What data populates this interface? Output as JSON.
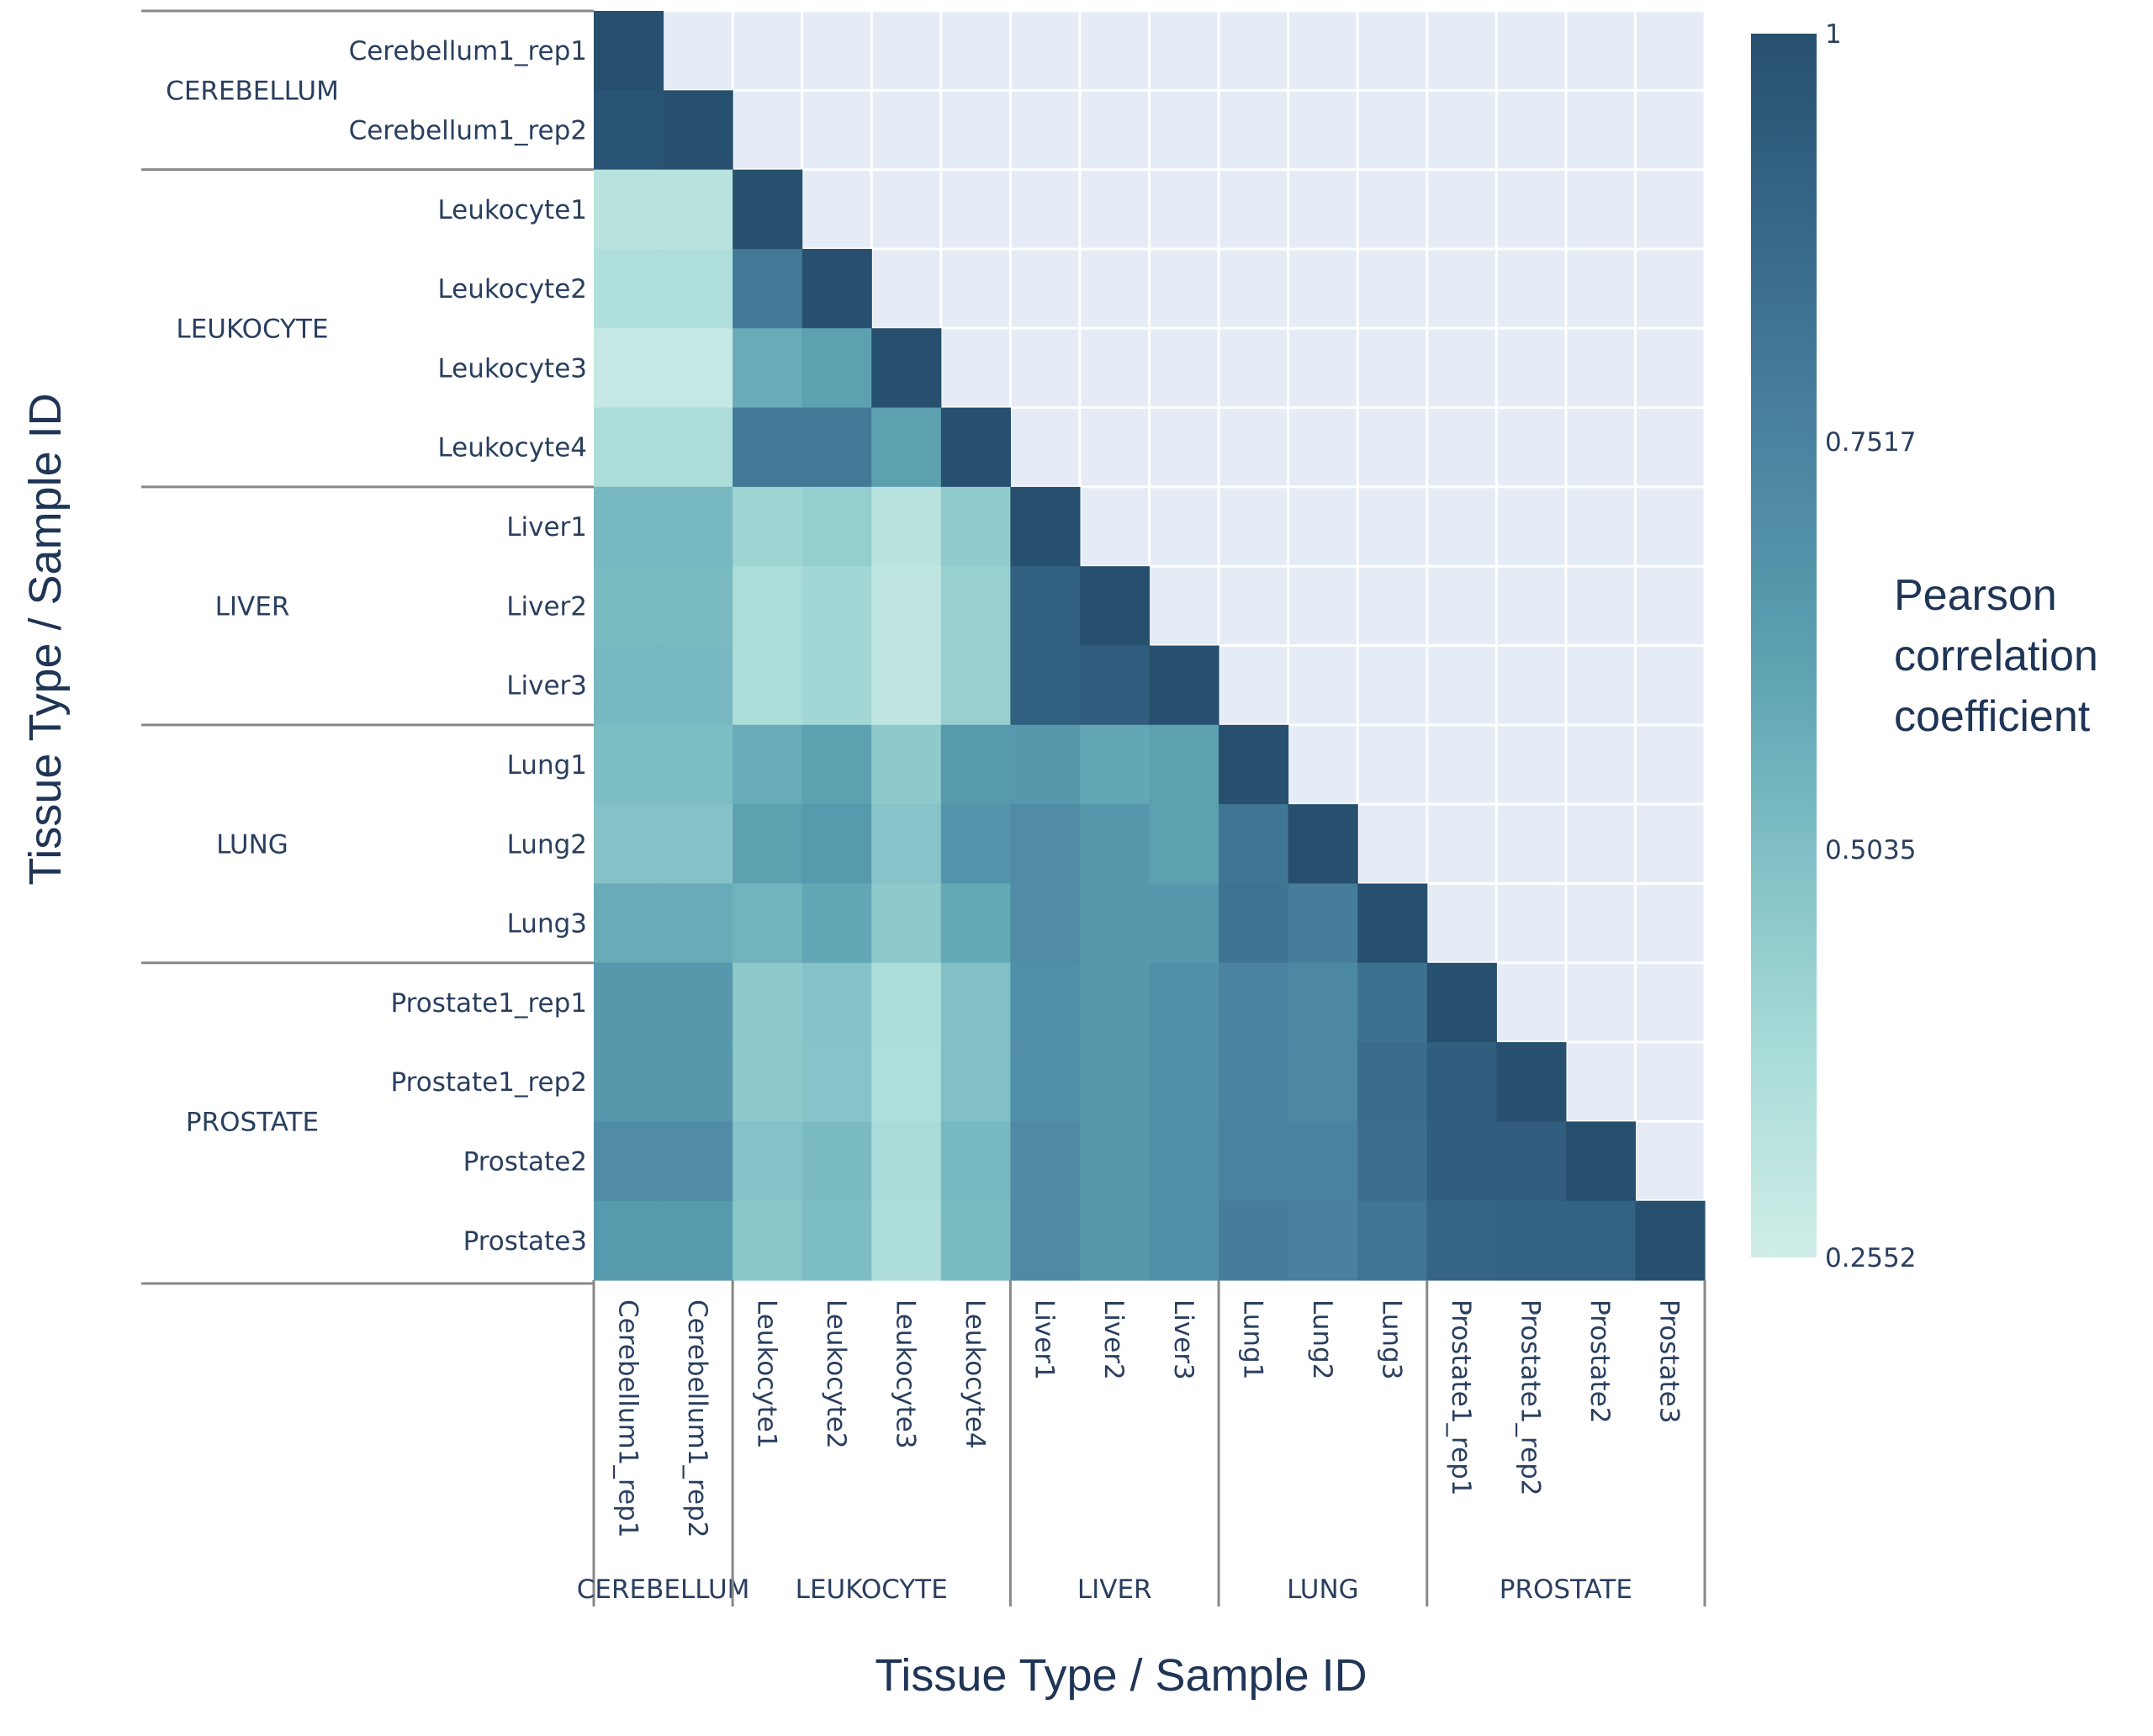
{
  "chart_data": {
    "type": "heatmap",
    "xlabel": "Tissue Type / Sample ID",
    "ylabel": "Tissue Type / Sample ID",
    "colorbar": {
      "title": "Pearson correlation coefficient",
      "title_lines": [
        "Pearson",
        "correlation",
        "coefficient"
      ],
      "range": [
        0.2552,
        1
      ],
      "ticks": [
        "1",
        "0.7517",
        "0.5035",
        "0.2552"
      ],
      "tick_values": [
        1,
        0.7517,
        0.5035,
        0.2552
      ],
      "colors": [
        "#d0ede8",
        "#a9dcd8",
        "#7fbfc5",
        "#5b9fb0",
        "#4a83a0",
        "#38698a",
        "#27506e"
      ]
    },
    "empty_color": "#e5ecf6",
    "groups": [
      {
        "name": "CEREBELLUM",
        "count": 2
      },
      {
        "name": "LEUKOCYTE",
        "count": 4
      },
      {
        "name": "LIVER",
        "count": 3
      },
      {
        "name": "LUNG",
        "count": 3
      },
      {
        "name": "PROSTATE",
        "count": 4
      }
    ],
    "samples": [
      "Cerebellum1_rep1",
      "Cerebellum1_rep2",
      "Leukocyte1",
      "Leukocyte2",
      "Leukocyte3",
      "Leukocyte4",
      "Liver1",
      "Liver2",
      "Liver3",
      "Lung1",
      "Lung2",
      "Lung3",
      "Prostate1_rep1",
      "Prostate1_rep2",
      "Prostate2",
      "Prostate3"
    ],
    "values_lower_triangle": [
      [
        1
      ],
      [
        0.98,
        1
      ],
      [
        0.33,
        0.33,
        1
      ],
      [
        0.36,
        0.36,
        0.8,
        1
      ],
      [
        0.29,
        0.29,
        0.58,
        0.62,
        1
      ],
      [
        0.37,
        0.37,
        0.8,
        0.8,
        0.62,
        1
      ],
      [
        0.53,
        0.53,
        0.41,
        0.44,
        0.33,
        0.45,
        1
      ],
      [
        0.52,
        0.52,
        0.37,
        0.4,
        0.31,
        0.43,
        0.92,
        1
      ],
      [
        0.53,
        0.53,
        0.37,
        0.4,
        0.31,
        0.43,
        0.92,
        0.93,
        1
      ],
      [
        0.51,
        0.51,
        0.58,
        0.62,
        0.46,
        0.65,
        0.66,
        0.6,
        0.62,
        1
      ],
      [
        0.49,
        0.49,
        0.62,
        0.65,
        0.48,
        0.67,
        0.71,
        0.66,
        0.62,
        0.82,
        1
      ],
      [
        0.58,
        0.58,
        0.55,
        0.6,
        0.46,
        0.59,
        0.71,
        0.66,
        0.66,
        0.83,
        0.78,
        1
      ],
      [
        0.66,
        0.66,
        0.46,
        0.49,
        0.37,
        0.5,
        0.7,
        0.66,
        0.69,
        0.75,
        0.73,
        0.84,
        1
      ],
      [
        0.66,
        0.66,
        0.46,
        0.48,
        0.36,
        0.5,
        0.7,
        0.66,
        0.69,
        0.75,
        0.73,
        0.86,
        0.93,
        1
      ],
      [
        0.71,
        0.71,
        0.49,
        0.52,
        0.38,
        0.53,
        0.72,
        0.66,
        0.7,
        0.75,
        0.75,
        0.85,
        0.93,
        0.93,
        1
      ],
      [
        0.65,
        0.65,
        0.47,
        0.51,
        0.37,
        0.52,
        0.72,
        0.66,
        0.69,
        0.78,
        0.76,
        0.82,
        0.9,
        0.91,
        0.91,
        1
      ]
    ]
  }
}
